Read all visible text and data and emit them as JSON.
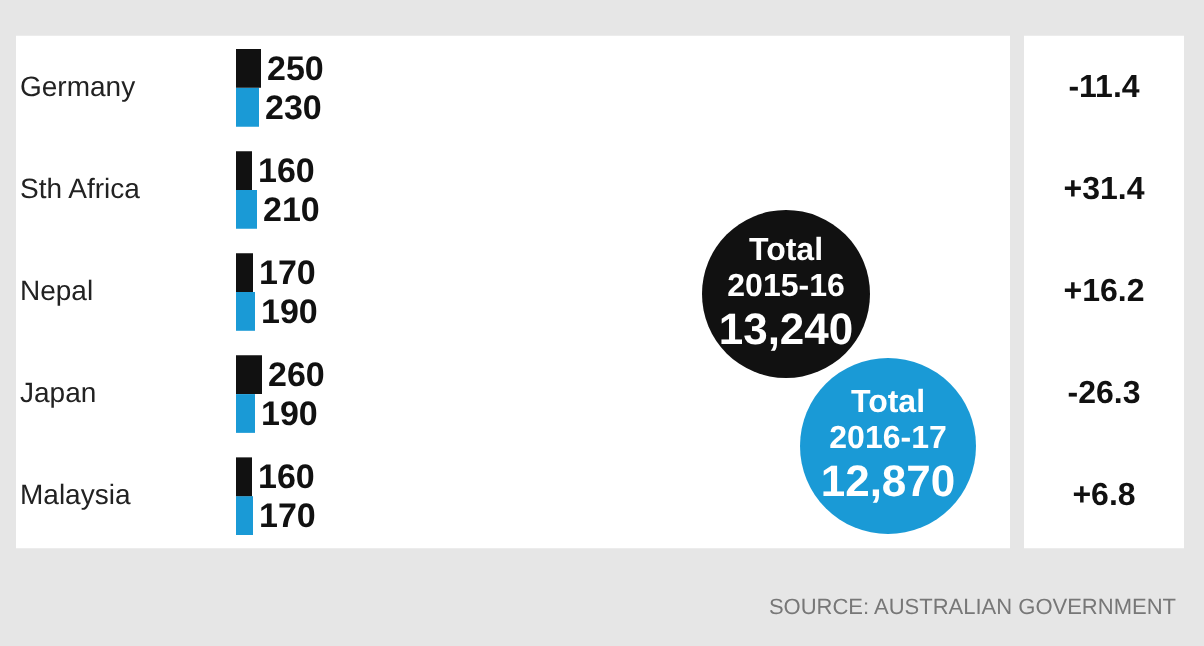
{
  "chart_data": {
    "type": "bar",
    "orientation": "horizontal",
    "categories": [
      "Germany",
      "Sth Africa",
      "Nepal",
      "Japan",
      "Malaysia"
    ],
    "series": [
      {
        "color": "#111111",
        "values": [
          250,
          160,
          170,
          260,
          160
        ]
      },
      {
        "color": "#1a9ad6",
        "values": [
          230,
          210,
          190,
          190,
          170
        ]
      }
    ],
    "data_labels": true,
    "tick_labels": "y",
    "annotations": [
      "-11.4",
      "+31.4",
      "+16.2",
      "-26.3",
      "+6.8",
      "Total 2015-16 13,240",
      "Total 2016-17 12,870",
      "SOURCE: AUSTRALIAN GOVERNMENT"
    ]
  }
}
